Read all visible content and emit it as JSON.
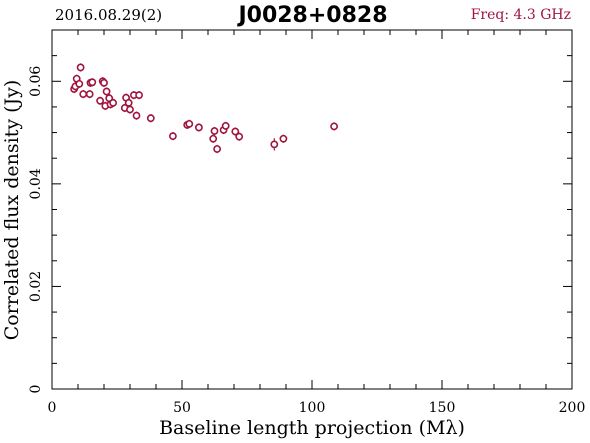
{
  "header": {
    "date_label": "2016.08.29(2)",
    "source_name": "J0028+0828",
    "freq_label": "Freq: 4.3 GHz"
  },
  "colors": {
    "points": "#a0153e",
    "freq_text": "#a0153e",
    "axes": "#000000"
  },
  "chart_data": {
    "type": "scatter",
    "title": "J0028+0828",
    "xlabel": "Baseline length projection (Mλ)",
    "ylabel": "Correlated flux density (Jy)",
    "xlim": [
      0,
      200
    ],
    "ylim": [
      0,
      0.07
    ],
    "x_ticks": [
      0,
      50,
      100,
      150,
      200
    ],
    "x_tick_labels": [
      "0",
      "50",
      "100",
      "150",
      "200"
    ],
    "y_ticks": [
      0,
      0.02,
      0.04,
      0.06
    ],
    "y_tick_labels": [
      "0",
      "0.02",
      "0.04",
      "0.06"
    ],
    "grid": false,
    "series": [
      {
        "points": [
          [
            8.5,
            0.0585,
            0.0008
          ],
          [
            9.0,
            0.059,
            0.0008
          ],
          [
            9.5,
            0.0605,
            0.0008
          ],
          [
            10.5,
            0.0595,
            0.0008
          ],
          [
            11.0,
            0.0627,
            0.0008
          ],
          [
            12.0,
            0.0575,
            0.0008
          ],
          [
            14.5,
            0.0575,
            0.0008
          ],
          [
            14.8,
            0.0597,
            0.0008
          ],
          [
            15.5,
            0.0598,
            0.0008
          ],
          [
            18.5,
            0.0562,
            0.0008
          ],
          [
            19.5,
            0.06,
            0.0008
          ],
          [
            20.0,
            0.0597,
            0.0008
          ],
          [
            20.5,
            0.0552,
            0.0008
          ],
          [
            21.0,
            0.058,
            0.0008
          ],
          [
            22.0,
            0.0567,
            0.0008
          ],
          [
            22.5,
            0.0555,
            0.0008
          ],
          [
            23.5,
            0.0558,
            0.0008
          ],
          [
            28.0,
            0.0548,
            0.0008
          ],
          [
            28.5,
            0.0568,
            0.0008
          ],
          [
            29.5,
            0.0558,
            0.0008
          ],
          [
            30.0,
            0.0545,
            0.0008
          ],
          [
            31.5,
            0.0573,
            0.0008
          ],
          [
            32.5,
            0.0533,
            0.0008
          ],
          [
            33.5,
            0.0573,
            0.0008
          ],
          [
            38.0,
            0.0528,
            0.0008
          ],
          [
            46.5,
            0.0493,
            0.0008
          ],
          [
            52.0,
            0.0515,
            0.0008
          ],
          [
            52.8,
            0.0517,
            0.0008
          ],
          [
            56.5,
            0.051,
            0.0008
          ],
          [
            62.0,
            0.0488,
            0.0008
          ],
          [
            62.5,
            0.0503,
            0.0008
          ],
          [
            63.5,
            0.0468,
            0.0008
          ],
          [
            66.0,
            0.0505,
            0.0008
          ],
          [
            66.8,
            0.0513,
            0.0008
          ],
          [
            70.5,
            0.0502,
            0.0008
          ],
          [
            72.0,
            0.0492,
            0.0008
          ],
          [
            85.5,
            0.0477,
            0.0012
          ],
          [
            89.0,
            0.0488,
            0.0008
          ],
          [
            108.5,
            0.0512,
            0.0008
          ]
        ]
      }
    ]
  }
}
